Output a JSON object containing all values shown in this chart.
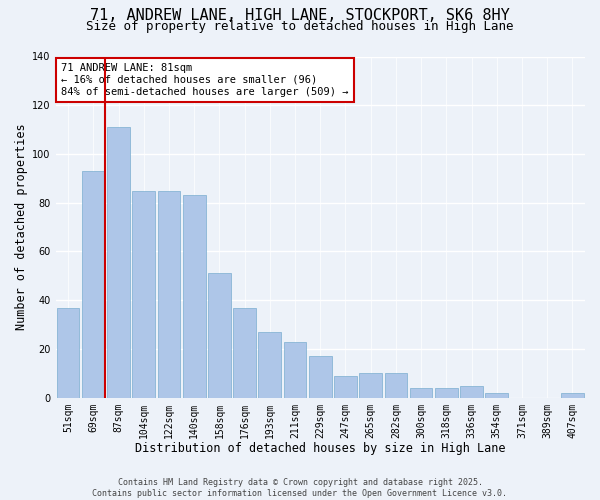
{
  "title_line1": "71, ANDREW LANE, HIGH LANE, STOCKPORT, SK6 8HY",
  "title_line2": "Size of property relative to detached houses in High Lane",
  "xlabel": "Distribution of detached houses by size in High Lane",
  "ylabel": "Number of detached properties",
  "categories": [
    "51sqm",
    "69sqm",
    "87sqm",
    "104sqm",
    "122sqm",
    "140sqm",
    "158sqm",
    "176sqm",
    "193sqm",
    "211sqm",
    "229sqm",
    "247sqm",
    "265sqm",
    "282sqm",
    "300sqm",
    "318sqm",
    "336sqm",
    "354sqm",
    "371sqm",
    "389sqm",
    "407sqm"
  ],
  "values": [
    37,
    93,
    111,
    85,
    85,
    83,
    51,
    37,
    27,
    23,
    17,
    9,
    10,
    10,
    4,
    4,
    5,
    2,
    0,
    0,
    2
  ],
  "bar_color": "#aec6e8",
  "bar_edge_color": "#7aaed0",
  "vline_x_index": 1,
  "vline_color": "#cc0000",
  "annotation_line1": "71 ANDREW LANE: 81sqm",
  "annotation_line2": "← 16% of detached houses are smaller (96)",
  "annotation_line3": "84% of semi-detached houses are larger (509) →",
  "annotation_box_color": "#ffffff",
  "annotation_box_edge": "#cc0000",
  "ylim": [
    0,
    140
  ],
  "yticks": [
    0,
    20,
    40,
    60,
    80,
    100,
    120,
    140
  ],
  "bg_color": "#edf2f9",
  "grid_color": "#ffffff",
  "footer": "Contains HM Land Registry data © Crown copyright and database right 2025.\nContains public sector information licensed under the Open Government Licence v3.0.",
  "title_fontsize": 11,
  "subtitle_fontsize": 9,
  "axis_label_fontsize": 8.5,
  "tick_fontsize": 7,
  "annotation_fontsize": 7.5,
  "footer_fontsize": 6
}
